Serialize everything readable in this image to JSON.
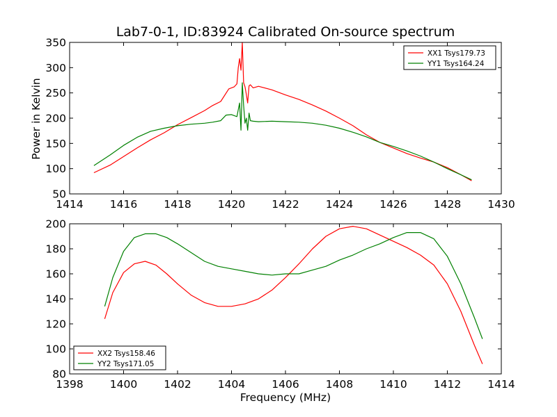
{
  "chart_data": [
    {
      "type": "line",
      "title": "Lab7-0-1, ID:83924 Calibrated On-source spectrum",
      "xlabel": "",
      "ylabel": "Power in Kelvin",
      "xlim": [
        1414,
        1430
      ],
      "ylim": [
        50,
        350
      ],
      "xticks": [
        "1414",
        "1416",
        "1418",
        "1420",
        "1422",
        "1424",
        "1426",
        "1428",
        "1430"
      ],
      "yticks": [
        "50",
        "100",
        "150",
        "200",
        "250",
        "300",
        "350"
      ],
      "grid": false,
      "legend_position": "top-right",
      "series": [
        {
          "name": "XX1 Tsys179.73",
          "color": "#ff0000",
          "x": [
            1414.9,
            1415.5,
            1416.0,
            1416.5,
            1417.0,
            1417.5,
            1418.0,
            1418.5,
            1419.0,
            1419.3,
            1419.6,
            1419.9,
            1420.1,
            1420.2,
            1420.25,
            1420.3,
            1420.35,
            1420.4,
            1420.45,
            1420.5,
            1420.55,
            1420.6,
            1420.65,
            1420.7,
            1420.8,
            1421.0,
            1421.5,
            1422.0,
            1422.5,
            1423.0,
            1423.5,
            1424.0,
            1424.5,
            1425.0,
            1425.5,
            1426.0,
            1426.5,
            1427.0,
            1427.5,
            1428.0,
            1428.5,
            1428.9
          ],
          "y": [
            92,
            107,
            124,
            141,
            157,
            171,
            187,
            201,
            215,
            225,
            233,
            258,
            262,
            268,
            300,
            318,
            295,
            350,
            270,
            262,
            247,
            230,
            264,
            266,
            260,
            263,
            256,
            246,
            237,
            226,
            214,
            200,
            185,
            167,
            152,
            141,
            130,
            121,
            113,
            102,
            88,
            76
          ]
        },
        {
          "name": "YY1 Tsys164.24",
          "color": "#008000",
          "x": [
            1414.9,
            1415.5,
            1416.0,
            1416.5,
            1417.0,
            1417.5,
            1418.0,
            1418.5,
            1419.0,
            1419.3,
            1419.6,
            1419.8,
            1420.0,
            1420.2,
            1420.3,
            1420.35,
            1420.4,
            1420.45,
            1420.5,
            1420.55,
            1420.6,
            1420.65,
            1420.7,
            1420.8,
            1421.0,
            1421.5,
            1422.0,
            1422.5,
            1423.0,
            1423.5,
            1424.0,
            1424.5,
            1425.0,
            1425.5,
            1426.0,
            1426.5,
            1427.0,
            1427.5,
            1428.0,
            1428.5,
            1428.9
          ],
          "y": [
            106,
            127,
            146,
            162,
            174,
            180,
            185,
            188,
            190,
            192,
            195,
            206,
            207,
            203,
            230,
            176,
            270,
            225,
            190,
            200,
            176,
            210,
            195,
            194,
            193,
            194,
            193,
            192,
            190,
            186,
            180,
            172,
            163,
            152,
            144,
            135,
            125,
            113,
            100,
            88,
            78
          ]
        }
      ]
    },
    {
      "type": "line",
      "title": "",
      "xlabel": "Frequency (MHz)",
      "ylabel": "",
      "xlim": [
        1398,
        1414
      ],
      "ylim": [
        80,
        200
      ],
      "xticks": [
        "1398",
        "1400",
        "1402",
        "1404",
        "1406",
        "1408",
        "1410",
        "1412",
        "1414"
      ],
      "yticks": [
        "80",
        "100",
        "120",
        "140",
        "160",
        "180",
        "200"
      ],
      "grid": false,
      "legend_position": "bottom-left",
      "series": [
        {
          "name": "XX2 Tsys158.46",
          "color": "#ff0000",
          "x": [
            1399.3,
            1399.6,
            1400.0,
            1400.4,
            1400.8,
            1401.2,
            1401.6,
            1402.0,
            1402.5,
            1403.0,
            1403.5,
            1404.0,
            1404.5,
            1405.0,
            1405.5,
            1406.0,
            1406.5,
            1407.0,
            1407.5,
            1408.0,
            1408.5,
            1409.0,
            1409.5,
            1410.0,
            1410.5,
            1411.0,
            1411.5,
            1412.0,
            1412.5,
            1413.0,
            1413.3
          ],
          "y": [
            124,
            145,
            161,
            168,
            170,
            167,
            160,
            152,
            143,
            137,
            134,
            134,
            136,
            140,
            147,
            157,
            168,
            180,
            190,
            196,
            198,
            196,
            191,
            186,
            181,
            175,
            167,
            152,
            130,
            103,
            88
          ]
        },
        {
          "name": "YY2 Tsys171.05",
          "color": "#008000",
          "x": [
            1399.3,
            1399.6,
            1400.0,
            1400.4,
            1400.8,
            1401.2,
            1401.6,
            1402.0,
            1402.5,
            1403.0,
            1403.5,
            1404.0,
            1404.5,
            1405.0,
            1405.5,
            1406.0,
            1406.5,
            1407.0,
            1407.5,
            1408.0,
            1408.5,
            1409.0,
            1409.5,
            1410.0,
            1410.5,
            1411.0,
            1411.5,
            1412.0,
            1412.5,
            1413.0,
            1413.3
          ],
          "y": [
            134,
            157,
            178,
            189,
            192,
            192,
            189,
            184,
            177,
            170,
            166,
            164,
            162,
            160,
            159,
            160,
            160,
            163,
            166,
            171,
            175,
            180,
            184,
            189,
            193,
            193,
            188,
            174,
            152,
            125,
            108
          ]
        }
      ]
    }
  ]
}
